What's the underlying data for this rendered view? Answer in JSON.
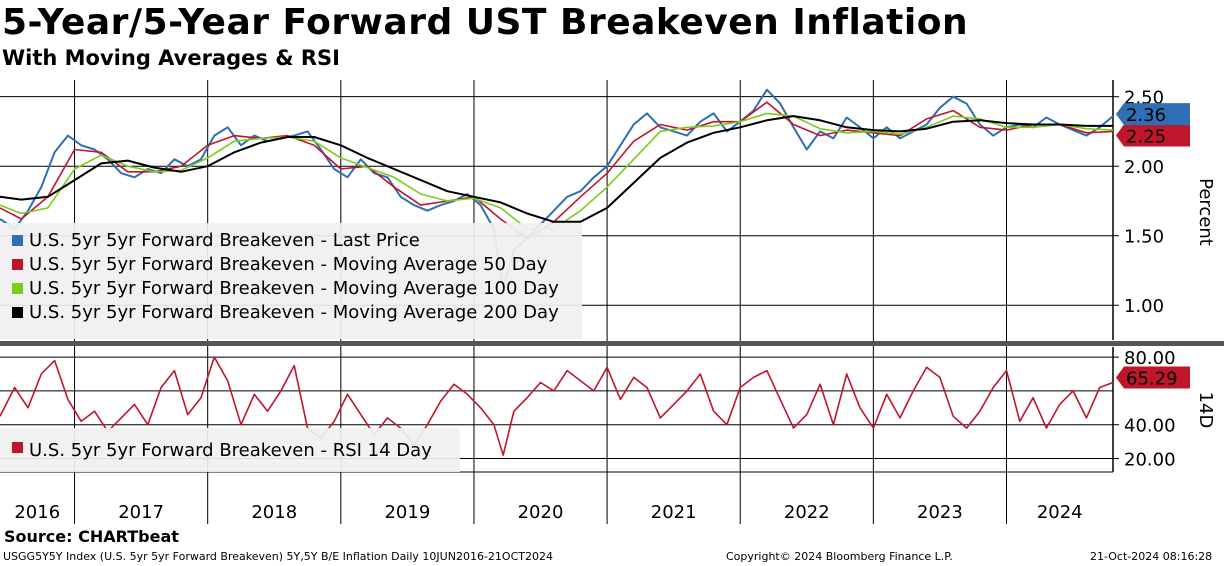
{
  "header": {
    "title": "5-Year/5-Year Forward UST Breakeven Inflation",
    "subtitle": "With Moving Averages & RSI"
  },
  "footer": {
    "source": "Source: CHARTbeat",
    "ticker_info": "USGG5Y5Y Index (U.S. 5yr 5yr Forward Breakeven) 5Y,5Y B/E Inflation  Daily 10JUN2016-21OCT2024",
    "copyright": "Copyright© 2024 Bloomberg Finance L.P.",
    "timestamp": "21-Oct-2024 08:16:28"
  },
  "colors": {
    "last_price": "#2e6fb5",
    "ma50": "#c0162c",
    "ma100": "#7dcc1c",
    "ma200": "#000000",
    "rsi": "#c0162c",
    "grid": "#000000"
  },
  "chart_data": [
    {
      "type": "line",
      "panel": "price",
      "ylabel": "Percent",
      "ylim": [
        0.75,
        2.62
      ],
      "yticks": [
        "2.50",
        "2.00",
        "1.50",
        "1.00"
      ],
      "ytick_values": [
        2.5,
        2.0,
        1.5,
        1.0
      ],
      "x_start": 2016.44,
      "x_end": 2024.8,
      "x_labels": [
        "2016",
        "2017",
        "2018",
        "2019",
        "2020",
        "2021",
        "2022",
        "2023",
        "2024"
      ],
      "last_value_labels": [
        {
          "series": "last_price",
          "text": "2.36"
        },
        {
          "series": "ma50",
          "text": "2.25"
        }
      ],
      "series": [
        {
          "key": "last_price",
          "name": "U.S. 5yr 5yr Forward Breakeven - Last Price",
          "x": [
            2016.44,
            2016.55,
            2016.65,
            2016.75,
            2016.85,
            2016.95,
            2017.05,
            2017.15,
            2017.25,
            2017.35,
            2017.45,
            2017.55,
            2017.65,
            2017.75,
            2017.85,
            2017.95,
            2018.05,
            2018.15,
            2018.25,
            2018.35,
            2018.45,
            2018.55,
            2018.65,
            2018.75,
            2018.85,
            2018.95,
            2019.05,
            2019.15,
            2019.25,
            2019.35,
            2019.45,
            2019.55,
            2019.65,
            2019.75,
            2019.85,
            2019.95,
            2020.05,
            2020.15,
            2020.22,
            2020.3,
            2020.4,
            2020.5,
            2020.6,
            2020.7,
            2020.8,
            2020.9,
            2021.0,
            2021.1,
            2021.2,
            2021.3,
            2021.4,
            2021.5,
            2021.6,
            2021.7,
            2021.8,
            2021.9,
            2022.0,
            2022.1,
            2022.2,
            2022.3,
            2022.4,
            2022.5,
            2022.6,
            2022.7,
            2022.8,
            2022.9,
            2023.0,
            2023.1,
            2023.2,
            2023.3,
            2023.4,
            2023.5,
            2023.6,
            2023.7,
            2023.8,
            2023.9,
            2024.0,
            2024.1,
            2024.2,
            2024.3,
            2024.4,
            2024.5,
            2024.6,
            2024.7,
            2024.8
          ],
          "values": [
            1.62,
            1.55,
            1.68,
            1.85,
            2.1,
            2.22,
            2.15,
            2.12,
            2.05,
            1.95,
            1.92,
            1.98,
            1.95,
            2.05,
            2.0,
            2.05,
            2.22,
            2.28,
            2.15,
            2.22,
            2.18,
            2.2,
            2.22,
            2.25,
            2.12,
            1.98,
            1.92,
            2.05,
            1.95,
            1.92,
            1.78,
            1.72,
            1.68,
            1.72,
            1.75,
            1.8,
            1.72,
            1.55,
            1.12,
            1.4,
            1.48,
            1.58,
            1.68,
            1.78,
            1.82,
            1.92,
            2.0,
            2.15,
            2.3,
            2.38,
            2.28,
            2.25,
            2.22,
            2.32,
            2.38,
            2.25,
            2.32,
            2.4,
            2.55,
            2.45,
            2.28,
            2.12,
            2.25,
            2.2,
            2.35,
            2.28,
            2.2,
            2.28,
            2.2,
            2.25,
            2.3,
            2.42,
            2.5,
            2.45,
            2.3,
            2.22,
            2.28,
            2.3,
            2.28,
            2.35,
            2.3,
            2.26,
            2.22,
            2.28,
            2.36
          ]
        },
        {
          "key": "ma50",
          "name": "U.S. 5yr 5yr Forward Breakeven - Moving Average 50 Day",
          "x": [
            2016.44,
            2016.6,
            2016.8,
            2017.0,
            2017.2,
            2017.4,
            2017.6,
            2017.8,
            2018.0,
            2018.2,
            2018.4,
            2018.6,
            2018.8,
            2019.0,
            2019.2,
            2019.4,
            2019.6,
            2019.8,
            2020.0,
            2020.2,
            2020.4,
            2020.6,
            2020.8,
            2021.0,
            2021.2,
            2021.4,
            2021.6,
            2021.8,
            2022.0,
            2022.2,
            2022.4,
            2022.6,
            2022.8,
            2023.0,
            2023.2,
            2023.4,
            2023.6,
            2023.8,
            2024.0,
            2024.2,
            2024.4,
            2024.6,
            2024.8
          ],
          "values": [
            1.7,
            1.62,
            1.78,
            2.12,
            2.1,
            1.96,
            1.96,
            2.0,
            2.15,
            2.22,
            2.2,
            2.22,
            2.15,
            1.98,
            2.0,
            1.85,
            1.72,
            1.75,
            1.78,
            1.62,
            1.48,
            1.6,
            1.78,
            1.95,
            2.18,
            2.3,
            2.26,
            2.32,
            2.32,
            2.46,
            2.3,
            2.22,
            2.26,
            2.24,
            2.22,
            2.34,
            2.4,
            2.28,
            2.26,
            2.3,
            2.3,
            2.24,
            2.25
          ]
        },
        {
          "key": "ma100",
          "name": "U.S. 5yr 5yr Forward Breakeven - Moving Average 100 Day",
          "x": [
            2016.44,
            2016.6,
            2016.8,
            2017.0,
            2017.2,
            2017.4,
            2017.6,
            2017.8,
            2018.0,
            2018.2,
            2018.4,
            2018.6,
            2018.8,
            2019.0,
            2019.2,
            2019.4,
            2019.6,
            2019.8,
            2020.0,
            2020.2,
            2020.4,
            2020.6,
            2020.8,
            2021.0,
            2021.2,
            2021.4,
            2021.6,
            2021.8,
            2022.0,
            2022.2,
            2022.4,
            2022.6,
            2022.8,
            2023.0,
            2023.2,
            2023.4,
            2023.6,
            2023.8,
            2024.0,
            2024.2,
            2024.4,
            2024.6,
            2024.8
          ],
          "values": [
            1.72,
            1.66,
            1.7,
            1.98,
            2.08,
            2.0,
            1.96,
            1.97,
            2.06,
            2.18,
            2.2,
            2.21,
            2.18,
            2.06,
            1.99,
            1.92,
            1.8,
            1.75,
            1.77,
            1.7,
            1.55,
            1.55,
            1.68,
            1.85,
            2.05,
            2.25,
            2.28,
            2.29,
            2.32,
            2.38,
            2.36,
            2.27,
            2.24,
            2.25,
            2.23,
            2.28,
            2.36,
            2.34,
            2.28,
            2.28,
            2.3,
            2.27,
            2.26
          ]
        },
        {
          "key": "ma200",
          "name": "U.S. 5yr 5yr Forward Breakeven - Moving Average 200 Day",
          "x": [
            2016.44,
            2016.6,
            2016.8,
            2017.0,
            2017.2,
            2017.4,
            2017.6,
            2017.8,
            2018.0,
            2018.2,
            2018.4,
            2018.6,
            2018.8,
            2019.0,
            2019.2,
            2019.4,
            2019.6,
            2019.8,
            2020.0,
            2020.2,
            2020.4,
            2020.6,
            2020.8,
            2021.0,
            2021.2,
            2021.4,
            2021.6,
            2021.8,
            2022.0,
            2022.2,
            2022.4,
            2022.6,
            2022.8,
            2023.0,
            2023.2,
            2023.4,
            2023.6,
            2023.8,
            2024.0,
            2024.2,
            2024.4,
            2024.6,
            2024.8
          ],
          "values": [
            1.78,
            1.76,
            1.78,
            1.9,
            2.02,
            2.04,
            1.99,
            1.96,
            2.0,
            2.1,
            2.17,
            2.21,
            2.21,
            2.15,
            2.06,
            1.98,
            1.9,
            1.82,
            1.78,
            1.74,
            1.66,
            1.6,
            1.6,
            1.7,
            1.88,
            2.06,
            2.17,
            2.24,
            2.28,
            2.33,
            2.36,
            2.33,
            2.28,
            2.26,
            2.25,
            2.27,
            2.32,
            2.33,
            2.31,
            2.3,
            2.3,
            2.29,
            2.29
          ]
        }
      ]
    },
    {
      "type": "line",
      "panel": "rsi",
      "ylabel": "14D",
      "ylim": [
        12,
        86
      ],
      "yticks": [
        "80.00",
        "40.00",
        "20.00"
      ],
      "ytick_values": [
        80,
        40,
        20
      ],
      "gridlines": [
        80,
        60,
        40,
        20
      ],
      "last_value_labels": [
        {
          "series": "rsi",
          "text": "65.29"
        }
      ],
      "series": [
        {
          "key": "rsi",
          "name": "U.S. 5yr 5yr Forward Breakeven - RSI 14 Day",
          "x": [
            2016.44,
            2016.55,
            2016.65,
            2016.75,
            2016.85,
            2016.95,
            2017.05,
            2017.15,
            2017.25,
            2017.35,
            2017.45,
            2017.55,
            2017.65,
            2017.75,
            2017.85,
            2017.95,
            2018.05,
            2018.15,
            2018.25,
            2018.35,
            2018.45,
            2018.55,
            2018.65,
            2018.75,
            2018.85,
            2018.95,
            2019.05,
            2019.15,
            2019.25,
            2019.35,
            2019.45,
            2019.55,
            2019.65,
            2019.75,
            2019.85,
            2019.95,
            2020.05,
            2020.15,
            2020.22,
            2020.3,
            2020.4,
            2020.5,
            2020.6,
            2020.7,
            2020.8,
            2020.9,
            2021.0,
            2021.1,
            2021.2,
            2021.3,
            2021.4,
            2021.5,
            2021.6,
            2021.7,
            2021.8,
            2021.9,
            2022.0,
            2022.1,
            2022.2,
            2022.3,
            2022.4,
            2022.5,
            2022.6,
            2022.7,
            2022.8,
            2022.9,
            2023.0,
            2023.1,
            2023.2,
            2023.3,
            2023.4,
            2023.5,
            2023.6,
            2023.7,
            2023.8,
            2023.9,
            2024.0,
            2024.1,
            2024.2,
            2024.3,
            2024.4,
            2024.5,
            2024.6,
            2024.7,
            2024.8
          ],
          "values": [
            45,
            62,
            50,
            70,
            78,
            55,
            42,
            48,
            36,
            44,
            52,
            40,
            62,
            72,
            46,
            56,
            80,
            66,
            40,
            58,
            48,
            60,
            75,
            38,
            32,
            42,
            58,
            46,
            34,
            44,
            38,
            28,
            40,
            54,
            64,
            58,
            50,
            40,
            22,
            48,
            56,
            65,
            60,
            72,
            66,
            60,
            74,
            55,
            68,
            62,
            44,
            52,
            60,
            70,
            48,
            40,
            62,
            68,
            72,
            55,
            38,
            46,
            64,
            40,
            70,
            50,
            38,
            58,
            44,
            60,
            74,
            68,
            45,
            38,
            48,
            62,
            72,
            42,
            56,
            38,
            52,
            60,
            44,
            62,
            65
          ]
        }
      ]
    }
  ]
}
